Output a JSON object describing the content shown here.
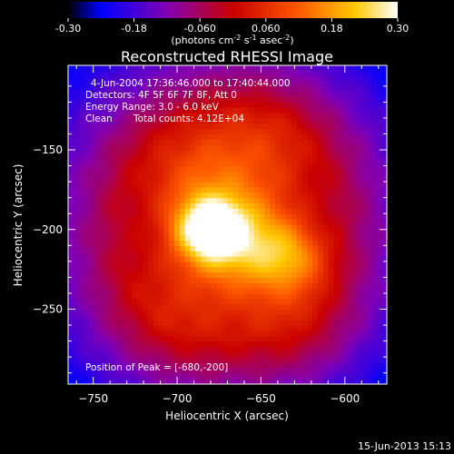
{
  "chart_data": {
    "type": "heatmap",
    "title": "Reconstructed RHESSI Image",
    "xlabel": "Heliocentric X (arcsec)",
    "ylabel": "Heliocentric Y (arcsec)",
    "xlim": [
      -765,
      -575
    ],
    "ylim": [
      -297,
      -97
    ],
    "xticks": [
      -750,
      -700,
      -650,
      -600
    ],
    "yticks": [
      -150,
      -200,
      -250
    ],
    "colorbar": {
      "range": [
        -0.3,
        0.3
      ],
      "ticks": [
        "-0.30",
        "-0.18",
        "-0.060",
        "0.060",
        "0.18",
        "0.30"
      ],
      "unit_label": "(photons cm",
      "unit_sup1": "-2",
      "unit_mid": " s",
      "unit_sup2": "-1",
      "unit_mid2": " asec",
      "unit_sup3": "-2",
      "unit_end": ")"
    },
    "annotations": {
      "time_range": "4-Jun-2004 17:36:46.000 to 17:40:44.000",
      "detectors": "Detectors: 4F 5F 6F 7F 8F, Att 0",
      "energy": "Energy Range: 3.0 - 6.0 keV",
      "method": "Clean",
      "counts": "Total counts: 4.12E+04",
      "peak": "Position of Peak = [-680,-200]"
    },
    "sources": [
      {
        "x": -681,
        "y": -200,
        "sigma": 14,
        "value": 0.3
      },
      {
        "x": -660,
        "y": -208,
        "sigma": 22,
        "value": 0.2
      },
      {
        "x": -632,
        "y": -218,
        "sigma": 16,
        "value": 0.15
      },
      {
        "x": -690,
        "y": -168,
        "sigma": 26,
        "value": 0.12
      },
      {
        "x": -648,
        "y": -150,
        "sigma": 28,
        "value": 0.1
      },
      {
        "x": -700,
        "y": -250,
        "sigma": 30,
        "value": 0.09
      },
      {
        "x": -630,
        "y": -258,
        "sigma": 26,
        "value": 0.08
      }
    ],
    "background": -0.05,
    "peak_marker": {
      "x": -680,
      "y": -200
    }
  },
  "footer": {
    "date": "15-Jun-2013 15:13"
  }
}
